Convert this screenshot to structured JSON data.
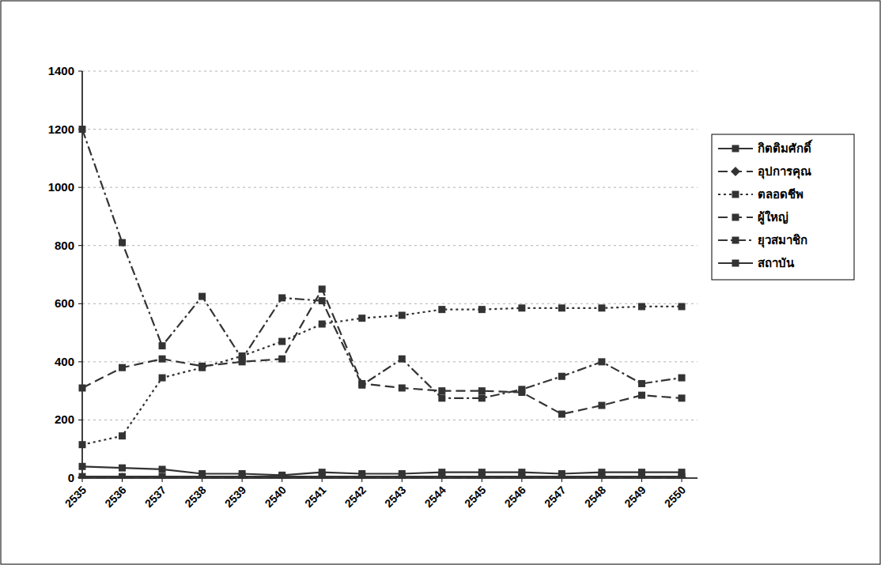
{
  "chart_data": {
    "type": "line",
    "categories": [
      "2535",
      "2536",
      "2537",
      "2538",
      "2539",
      "2540",
      "2541",
      "2542",
      "2543",
      "2544",
      "2545",
      "2546",
      "2547",
      "2548",
      "2549",
      "2550"
    ],
    "ylim": [
      0,
      1400
    ],
    "yticks": [
      0,
      200,
      400,
      600,
      800,
      1000,
      1200,
      1400
    ],
    "grid": true,
    "legend": "right",
    "series": [
      {
        "name": "กิตติมศักดิ์",
        "color": "#333333",
        "marker": "square",
        "line_style": "solid",
        "values": [
          40,
          35,
          30,
          15,
          15,
          10,
          20,
          15,
          15,
          20,
          20,
          20,
          15,
          20,
          20,
          20
        ]
      },
      {
        "name": "อุปการคุณ",
        "color": "#333333",
        "marker": "diamond",
        "line_style": "dashed",
        "values": [
          2,
          2,
          2,
          2,
          2,
          2,
          2,
          2,
          2,
          2,
          2,
          2,
          2,
          2,
          2,
          2
        ]
      },
      {
        "name": "ตลอดชีพ",
        "color": "#333333",
        "marker": "square",
        "line_style": "dotted",
        "values": [
          115,
          145,
          345,
          380,
          420,
          470,
          530,
          550,
          560,
          580,
          580,
          585,
          585,
          585,
          590,
          590
        ]
      },
      {
        "name": "ผู้ใหญ่",
        "color": "#333333",
        "marker": "square",
        "line_style": "dashed",
        "values": [
          310,
          380,
          410,
          385,
          400,
          410,
          650,
          325,
          310,
          300,
          300,
          295,
          220,
          250,
          285,
          275
        ]
      },
      {
        "name": "ยุวสมาชิก",
        "color": "#333333",
        "marker": "square",
        "line_style": "dash-dot",
        "values": [
          1200,
          810,
          455,
          625,
          410,
          620,
          610,
          320,
          410,
          275,
          275,
          305,
          350,
          400,
          325,
          345
        ]
      },
      {
        "name": "สถาบัน",
        "color": "#333333",
        "marker": "square",
        "line_style": "solid",
        "values": [
          5,
          5,
          5,
          5,
          5,
          5,
          5,
          5,
          5,
          5,
          5,
          5,
          5,
          5,
          5,
          5
        ]
      }
    ]
  }
}
